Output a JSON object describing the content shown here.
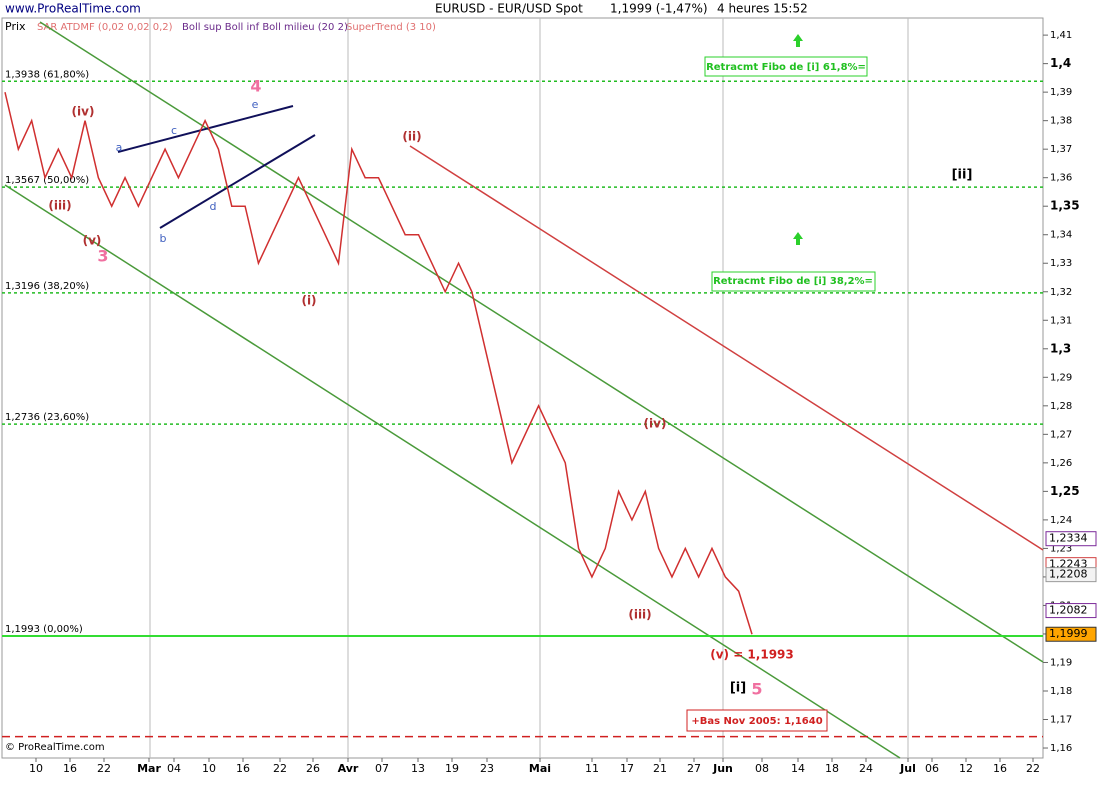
{
  "header": {
    "site": "www.ProRealTime.com",
    "instrument": "EURUSD - EUR/USD Spot",
    "price": "1,1999 (-1,47%)",
    "period": "4 heures  15:52",
    "copyright": "© ProRealTime.com"
  },
  "indicators": [
    "Prix",
    "SAR ATDMF (0,02 0,02 0,2)",
    "Boll sup Boll inf Boll milieu (20 2)",
    "SuperTrend (3 10)"
  ],
  "chart_data": {
    "type": "line",
    "ylim": [
      1.1565,
      1.416
    ],
    "yticks": [
      {
        "value": 1.41,
        "label": "1,41"
      },
      {
        "value": 1.4,
        "label": "1,4"
      },
      {
        "value": 1.39,
        "label": "1,39"
      },
      {
        "value": 1.38,
        "label": "1,38"
      },
      {
        "value": 1.37,
        "label": "1,37"
      },
      {
        "value": 1.36,
        "label": "1,36"
      },
      {
        "value": 1.35,
        "label": "1,35"
      },
      {
        "value": 1.34,
        "label": "1,34"
      },
      {
        "value": 1.33,
        "label": "1,33"
      },
      {
        "value": 1.32,
        "label": "1,32"
      },
      {
        "value": 1.31,
        "label": "1,31"
      },
      {
        "value": 1.3,
        "label": "1,3"
      },
      {
        "value": 1.29,
        "label": "1,29"
      },
      {
        "value": 1.28,
        "label": "1,28"
      },
      {
        "value": 1.27,
        "label": "1,27"
      },
      {
        "value": 1.26,
        "label": "1,26"
      },
      {
        "value": 1.25,
        "label": "1,25"
      },
      {
        "value": 1.24,
        "label": "1,24"
      },
      {
        "value": 1.23,
        "label": "1,23"
      },
      {
        "value": 1.22,
        "label": "1,22"
      },
      {
        "value": 1.21,
        "label": "1,21"
      },
      {
        "value": 1.2,
        "label": "1,2"
      },
      {
        "value": 1.19,
        "label": "1,19"
      },
      {
        "value": 1.18,
        "label": "1,18"
      },
      {
        "value": 1.17,
        "label": "1,17"
      },
      {
        "value": 1.16,
        "label": "1,16"
      }
    ],
    "x_axis_labels": [
      "10",
      "16",
      "22",
      "Mar",
      "04",
      "10",
      "16",
      "22",
      "26",
      "Avr",
      "07",
      "13",
      "19",
      "23",
      "Mai",
      "11",
      "17",
      "21",
      "27",
      "Jun",
      "08",
      "14",
      "18",
      "24",
      "Jul",
      "06",
      "12",
      "16",
      "22"
    ],
    "series": [
      {
        "name": "EURUSD",
        "color": "#d03030",
        "values": [
          1.39,
          1.37,
          1.38,
          1.36,
          1.37,
          1.36,
          1.38,
          1.36,
          1.35,
          1.36,
          1.35,
          1.36,
          1.37,
          1.36,
          1.37,
          1.38,
          1.37,
          1.35,
          1.35,
          1.33,
          1.34,
          1.35,
          1.36,
          1.35,
          1.34,
          1.33,
          1.37,
          1.36,
          1.36,
          1.35,
          1.34,
          1.34,
          1.33,
          1.32,
          1.33,
          1.32,
          1.3,
          1.28,
          1.26,
          1.27,
          1.28,
          1.27,
          1.26,
          1.23,
          1.22,
          1.23,
          1.25,
          1.24,
          1.25,
          1.23,
          1.22,
          1.23,
          1.22,
          1.23,
          1.22,
          1.215,
          1.1999
        ]
      }
    ],
    "levels": [
      {
        "value": 1.3938,
        "label": "1,3938 (61,80%)"
      },
      {
        "value": 1.3567,
        "label": "1,3567 (50,00%)"
      },
      {
        "value": 1.3196,
        "label": "1,3196 (38,20%)"
      },
      {
        "value": 1.2736,
        "label": "1,2736 (23,60%)"
      },
      {
        "value": 1.1993,
        "label": "1,1993 (0,00%)"
      }
    ],
    "support": {
      "value": 1.164,
      "label": "+Bas Nov 2005: 1,1640"
    },
    "price_tags": [
      {
        "value": 1.2334,
        "label": "1,2334"
      },
      {
        "value": 1.2243,
        "label": "1,2243"
      },
      {
        "value": 1.2208,
        "label": "1,2208"
      },
      {
        "value": 1.2082,
        "label": "1,2082"
      },
      {
        "value": 1.1999,
        "label": "1,1999"
      }
    ],
    "annotations": [
      "(iv)",
      "(iii)",
      "(v)",
      "3",
      "4",
      "e",
      "a",
      "c",
      "b",
      "d",
      "(ii)",
      "(i)",
      "(iii)",
      "(iv)",
      "(v) = 1,1993",
      "[i]",
      "5",
      "[ii]",
      "Retracmt Fibo de [i] 61,8%=",
      "Retracmt Fibo de [i] 38,2%="
    ]
  }
}
